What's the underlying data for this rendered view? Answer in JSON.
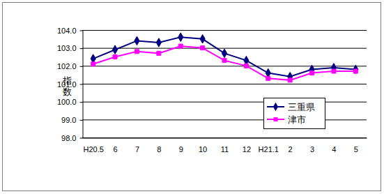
{
  "chart_data": {
    "type": "line",
    "y_label": "指数",
    "categories": [
      "H20.5",
      "6",
      "7",
      "8",
      "9",
      "10",
      "11",
      "12",
      "H21.1",
      "2",
      "3",
      "4",
      "5"
    ],
    "series": [
      {
        "name": "三重県",
        "color": "#000080",
        "marker": "diamond",
        "values": [
          102.4,
          102.9,
          103.4,
          103.3,
          103.6,
          103.5,
          102.7,
          102.3,
          101.6,
          101.4,
          101.8,
          101.9,
          101.8
        ]
      },
      {
        "name": "津市",
        "color": "#ff00ff",
        "marker": "square",
        "values": [
          102.1,
          102.5,
          102.8,
          102.7,
          103.1,
          103.0,
          102.3,
          102.0,
          101.3,
          101.2,
          101.6,
          101.7,
          101.7
        ]
      }
    ],
    "ylim": [
      98,
      104
    ],
    "yticks": [
      {
        "value": 98,
        "label": "98.0"
      },
      {
        "value": 99,
        "label": "99.0"
      },
      {
        "value": 100,
        "label": "100.0"
      },
      {
        "value": 101,
        "label": "101.0"
      },
      {
        "value": 102,
        "label": "102.0"
      },
      {
        "value": 103,
        "label": "103.0"
      },
      {
        "value": 104,
        "label": "104.0"
      }
    ],
    "grid": true,
    "legend": "right"
  }
}
